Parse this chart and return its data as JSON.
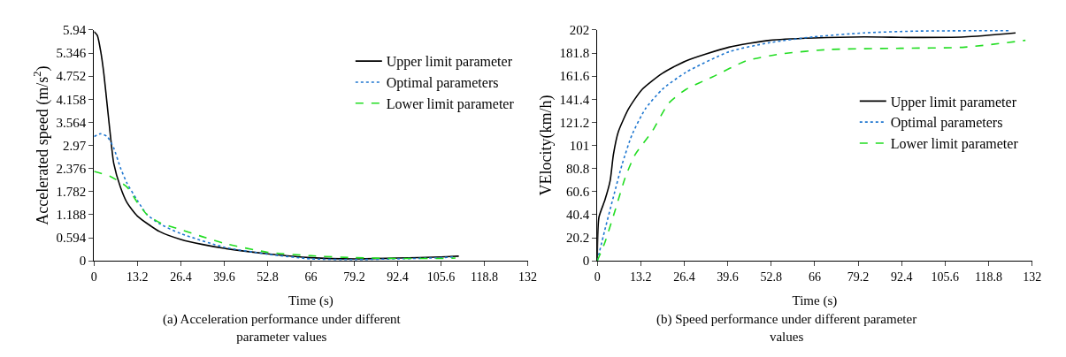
{
  "chart_data": [
    {
      "type": "line",
      "xlabel": "Time (s)",
      "ylabel": "Accelerated speed (m/s$^{2}$)",
      "annotations": [
        "(a) Acceleration performance under different parameter values"
      ],
      "xlim": [
        0,
        132
      ],
      "xticks": [
        0,
        13.2,
        26.4,
        39.6,
        52.8,
        66,
        79.2,
        92.4,
        105.6,
        118.8,
        132
      ],
      "ylim": [
        0,
        5.94
      ],
      "yticks": [
        0,
        0.594,
        1.188,
        1.782,
        2.376,
        2.97,
        3.564,
        4.158,
        4.752,
        5.346,
        5.94
      ],
      "legend": "top right",
      "series": [
        {
          "name": "Upper limit parameter",
          "color": "#000000",
          "line_style": "solid",
          "x": [
            0,
            1,
            2,
            3,
            4,
            5,
            6,
            8,
            10,
            13.2,
            20,
            26.4,
            33,
            39.6,
            52.8,
            66,
            79.2,
            92.4,
            105.6,
            111
          ],
          "values": [
            5.9,
            5.8,
            5.4,
            4.8,
            4.0,
            3.2,
            2.5,
            1.9,
            1.5,
            1.15,
            0.75,
            0.55,
            0.42,
            0.32,
            0.18,
            0.08,
            0.05,
            0.07,
            0.1,
            0.12
          ]
        },
        {
          "name": "Optimal parameters",
          "color": "#1f77d0",
          "line_style": "dotted",
          "x": [
            0,
            2,
            4,
            6,
            8,
            10,
            13.2,
            16,
            20,
            26.4,
            39.6,
            52.8,
            66,
            79.2,
            92.4,
            105.6,
            110
          ],
          "values": [
            3.2,
            3.27,
            3.2,
            2.9,
            2.4,
            2.0,
            1.55,
            1.2,
            0.95,
            0.7,
            0.35,
            0.17,
            0.05,
            0.03,
            0.05,
            0.08,
            0.1
          ]
        },
        {
          "name": "Lower limit parameter",
          "color": "#22dd22",
          "line_style": "dashed",
          "x": [
            0,
            5,
            10,
            13.2,
            16,
            20,
            26.4,
            33,
            39.6,
            52.8,
            66,
            79.2,
            92.4,
            105.6,
            110
          ],
          "values": [
            2.3,
            2.17,
            1.9,
            1.5,
            1.2,
            0.98,
            0.8,
            0.62,
            0.45,
            0.22,
            0.13,
            0.08,
            0.06,
            0.06,
            0.07
          ]
        }
      ]
    },
    {
      "type": "line",
      "xlabel": "Time (s)",
      "ylabel": "VElocity(km/h)",
      "annotations": [
        "(b) Speed performance under different parameter values"
      ],
      "xlim": [
        0,
        132
      ],
      "xticks": [
        0,
        13.2,
        26.4,
        39.6,
        52.8,
        66,
        79.2,
        92.4,
        105.6,
        118.8,
        132
      ],
      "ylim": [
        0,
        202
      ],
      "yticks": [
        0,
        20.2,
        40.4,
        60.6,
        80.8,
        101,
        121.2,
        141.4,
        161.6,
        181.8,
        202
      ],
      "legend": "right",
      "series": [
        {
          "name": "Upper limit parameter",
          "color": "#000000",
          "line_style": "solid",
          "x": [
            0,
            0.5,
            2.3,
            3.9,
            4.9,
            6.4,
            9.5,
            13.6,
            19.7,
            26.9,
            40,
            52.4,
            65.6,
            81,
            96,
            111.6,
            127
          ],
          "values": [
            0,
            38,
            53,
            70,
            93,
            113,
            133,
            150,
            164,
            175,
            187,
            193,
            195,
            196,
            195.5,
            196,
            199.5
          ]
        },
        {
          "name": "Optimal parameters",
          "color": "#1f77d0",
          "line_style": "dotted",
          "x": [
            0,
            2.3,
            4.9,
            7.5,
            10.5,
            14.6,
            19.7,
            26.9,
            40,
            52.4,
            65.6,
            81,
            96,
            124.9
          ],
          "values": [
            0,
            27,
            56,
            84,
            110,
            133,
            150,
            165,
            183,
            191,
            196,
            199.5,
            201,
            201.5
          ]
        },
        {
          "name": "Lower limit parameter",
          "color": "#22dd22",
          "line_style": "dashed",
          "x": [
            0,
            2.3,
            5.4,
            8.5,
            11.5,
            16.6,
            21.7,
            26.9,
            35,
            45.2,
            55.4,
            70.7,
            91,
            111.6,
            130
          ],
          "values": [
            0,
            16,
            44,
            73,
            93,
            113,
            138,
            150,
            161,
            175,
            181,
            185,
            186,
            187,
            193
          ]
        }
      ]
    }
  ]
}
